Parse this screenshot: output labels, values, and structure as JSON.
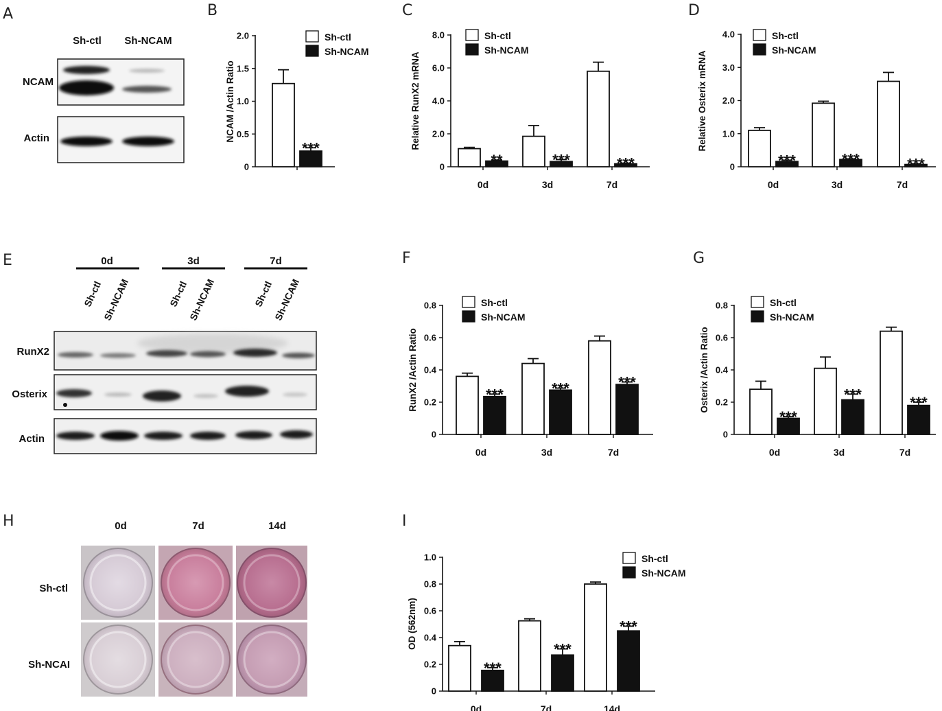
{
  "panels": {
    "A": {
      "letter": "A",
      "columns": [
        "Sh-ctl",
        "Sh-NCAM"
      ],
      "rows": [
        "NCAM",
        "Actin"
      ]
    },
    "E": {
      "letter": "E",
      "groups": [
        "0d",
        "3d",
        "7d"
      ],
      "lanes": [
        "Sh-ctl",
        "Sh-NCAM",
        "Sh-ctl",
        "Sh-NCAM",
        "Sh-ctl",
        "Sh-NCAM"
      ],
      "rows": [
        "RunX2",
        "Osterix",
        "Actin"
      ]
    },
    "H": {
      "letter": "H",
      "columns": [
        "0d",
        "7d",
        "14d"
      ],
      "rows": [
        "Sh-ctl",
        "Sh-NCAI"
      ]
    }
  },
  "chart_data": [
    {
      "id": "B",
      "letter": "B",
      "type": "bar",
      "categories": [
        ""
      ],
      "series": [
        {
          "name": "Sh-ctl",
          "values": [
            1.27
          ],
          "errors": [
            0.21
          ],
          "sig": [
            ""
          ],
          "color": "#ffffff"
        },
        {
          "name": "Sh-NCAM",
          "values": [
            0.24
          ],
          "errors": [
            0.05
          ],
          "sig": [
            "***"
          ],
          "color": "#111111"
        }
      ],
      "ylabel": "NCAM /Actin Ratio",
      "ylim": [
        0,
        2.0
      ],
      "yticks": [
        "0",
        "0.5",
        "1.0",
        "1.5",
        "2.0"
      ],
      "legend": "top-right"
    },
    {
      "id": "C",
      "letter": "C",
      "type": "bar",
      "categories": [
        "0d",
        "3d",
        "7d"
      ],
      "series": [
        {
          "name": "Sh-ctl",
          "values": [
            1.1,
            1.85,
            5.8
          ],
          "errors": [
            0.08,
            0.65,
            0.55
          ],
          "sig": [
            "",
            "",
            ""
          ],
          "color": "#ffffff"
        },
        {
          "name": "Sh-NCAM",
          "values": [
            0.35,
            0.32,
            0.18
          ],
          "errors": [
            0.06,
            0.12,
            0.04
          ],
          "sig": [
            "**",
            "***",
            "***"
          ],
          "color": "#111111"
        }
      ],
      "ylabel": "Relative RunX2  mRNA",
      "ylim": [
        0,
        8.0
      ],
      "yticks": [
        "0",
        "2.0",
        "4.0",
        "6.0",
        "8.0"
      ],
      "legend": "top-left"
    },
    {
      "id": "D",
      "letter": "D",
      "type": "bar",
      "categories": [
        "0d",
        "3d",
        "7d"
      ],
      "series": [
        {
          "name": "Sh-ctl",
          "values": [
            1.1,
            1.92,
            2.58
          ],
          "errors": [
            0.08,
            0.06,
            0.27
          ],
          "sig": [
            "",
            "",
            ""
          ],
          "color": "#ffffff"
        },
        {
          "name": "Sh-NCAM",
          "values": [
            0.16,
            0.22,
            0.07
          ],
          "errors": [
            0.04,
            0.02,
            0.02
          ],
          "sig": [
            "***",
            "***",
            "***"
          ],
          "color": "#111111"
        }
      ],
      "ylabel": "Relative Osterix  mRNA",
      "ylim": [
        0,
        4.0
      ],
      "yticks": [
        "0",
        "1.0",
        "2.0",
        "3.0",
        "4.0"
      ],
      "legend": "top-left"
    },
    {
      "id": "F",
      "letter": "F",
      "type": "bar",
      "categories": [
        "0d",
        "3d",
        "7d"
      ],
      "series": [
        {
          "name": "Sh-ctl",
          "values": [
            0.36,
            0.44,
            0.58
          ],
          "errors": [
            0.02,
            0.03,
            0.03
          ],
          "sig": [
            "",
            "",
            ""
          ],
          "color": "#ffffff"
        },
        {
          "name": "Sh-NCAM",
          "values": [
            0.235,
            0.275,
            0.31
          ],
          "errors": [
            0.015,
            0.012,
            0.015
          ],
          "sig": [
            "***",
            "***",
            "***"
          ],
          "color": "#111111"
        }
      ],
      "ylabel": "RunX2 /Actin Ratio",
      "ylim": [
        0,
        0.8
      ],
      "yticks": [
        "0",
        "0.2",
        "0.4",
        "0.6",
        "0.8"
      ],
      "legend": "top-left"
    },
    {
      "id": "G",
      "letter": "G",
      "type": "bar",
      "categories": [
        "0d",
        "3d",
        "7d"
      ],
      "series": [
        {
          "name": "Sh-ctl",
          "values": [
            0.28,
            0.41,
            0.64
          ],
          "errors": [
            0.05,
            0.07,
            0.025
          ],
          "sig": [
            "",
            "",
            ""
          ],
          "color": "#ffffff"
        },
        {
          "name": "Sh-NCAM",
          "values": [
            0.1,
            0.215,
            0.18
          ],
          "errors": [
            0.01,
            0.035,
            0.02
          ],
          "sig": [
            "***",
            "***",
            "***"
          ],
          "color": "#111111"
        }
      ],
      "ylabel": "Osterix /Actin Ratio",
      "ylim": [
        0,
        0.8
      ],
      "yticks": [
        "0",
        "0.2",
        "0.4",
        "0.6",
        "0.8"
      ],
      "legend": "top-left"
    },
    {
      "id": "I",
      "letter": "I",
      "type": "bar",
      "categories": [
        "0d",
        "7d",
        "14d"
      ],
      "series": [
        {
          "name": "Sh-ctl",
          "values": [
            0.34,
            0.525,
            0.8
          ],
          "errors": [
            0.03,
            0.015,
            0.015
          ],
          "sig": [
            "",
            "",
            ""
          ],
          "color": "#ffffff"
        },
        {
          "name": "Sh-NCAM",
          "values": [
            0.155,
            0.27,
            0.45
          ],
          "errors": [
            0.02,
            0.045,
            0.035
          ],
          "sig": [
            "***",
            "***",
            "***"
          ],
          "color": "#111111"
        }
      ],
      "ylabel": "OD (562nm)",
      "ylim": [
        0,
        1.0
      ],
      "yticks": [
        "0",
        "0.2",
        "0.4",
        "0.6",
        "0.8",
        "1.0"
      ],
      "legend": "top-right"
    }
  ]
}
